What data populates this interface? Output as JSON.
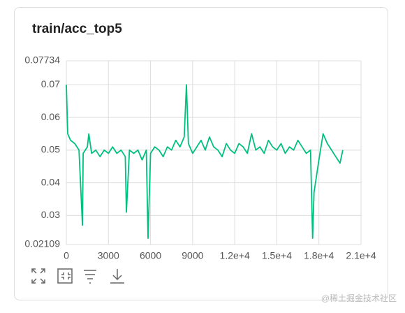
{
  "chart_data": {
    "type": "line",
    "title": "train/acc_top5",
    "color": "#00c07f",
    "grid": true,
    "x": [
      0,
      100,
      300,
      600,
      900,
      1150,
      1200,
      1500,
      1600,
      1800,
      2100,
      2400,
      2700,
      3000,
      3300,
      3600,
      3900,
      4200,
      4280,
      4500,
      4800,
      5100,
      5400,
      5700,
      5820,
      6000,
      6300,
      6600,
      6900,
      7200,
      7500,
      7800,
      8100,
      8400,
      8560,
      8700,
      9000,
      9300,
      9600,
      9900,
      10200,
      10500,
      10800,
      11100,
      11400,
      11700,
      12000,
      12300,
      12600,
      12900,
      13200,
      13500,
      13800,
      14100,
      14400,
      14700,
      15000,
      15300,
      15600,
      15900,
      16200,
      16500,
      16800,
      17100,
      17400,
      17550,
      17650,
      18000,
      18300,
      18600,
      18900,
      19200,
      19500,
      19700
    ],
    "values": [
      0.07,
      0.055,
      0.053,
      0.052,
      0.05,
      0.027,
      0.049,
      0.051,
      0.055,
      0.049,
      0.05,
      0.048,
      0.05,
      0.049,
      0.051,
      0.049,
      0.05,
      0.048,
      0.031,
      0.05,
      0.049,
      0.05,
      0.047,
      0.05,
      0.023,
      0.049,
      0.051,
      0.05,
      0.048,
      0.051,
      0.05,
      0.053,
      0.051,
      0.054,
      0.07,
      0.052,
      0.049,
      0.051,
      0.053,
      0.05,
      0.054,
      0.051,
      0.05,
      0.048,
      0.052,
      0.05,
      0.049,
      0.052,
      0.051,
      0.049,
      0.055,
      0.05,
      0.051,
      0.049,
      0.053,
      0.051,
      0.05,
      0.052,
      0.049,
      0.051,
      0.05,
      0.053,
      0.051,
      0.049,
      0.05,
      0.023,
      0.037,
      0.047,
      0.055,
      0.052,
      0.05,
      0.048,
      0.046,
      0.05
    ],
    "xlim": [
      0,
      21000
    ],
    "ylim": [
      0.02109,
      0.07734
    ],
    "xticks": [
      0,
      3000,
      6000,
      9000,
      {
        "value": 12000,
        "label": "1.2e+4"
      },
      {
        "value": 15000,
        "label": "1.5e+4"
      },
      {
        "value": 18000,
        "label": "1.8e+4"
      },
      {
        "value": 21000,
        "label": "2.1e+4"
      }
    ],
    "yticks": [
      0.02109,
      0.03,
      0.04,
      0.05,
      0.06,
      0.07,
      0.07734
    ]
  },
  "watermark": "@稀土掘金技术社区"
}
